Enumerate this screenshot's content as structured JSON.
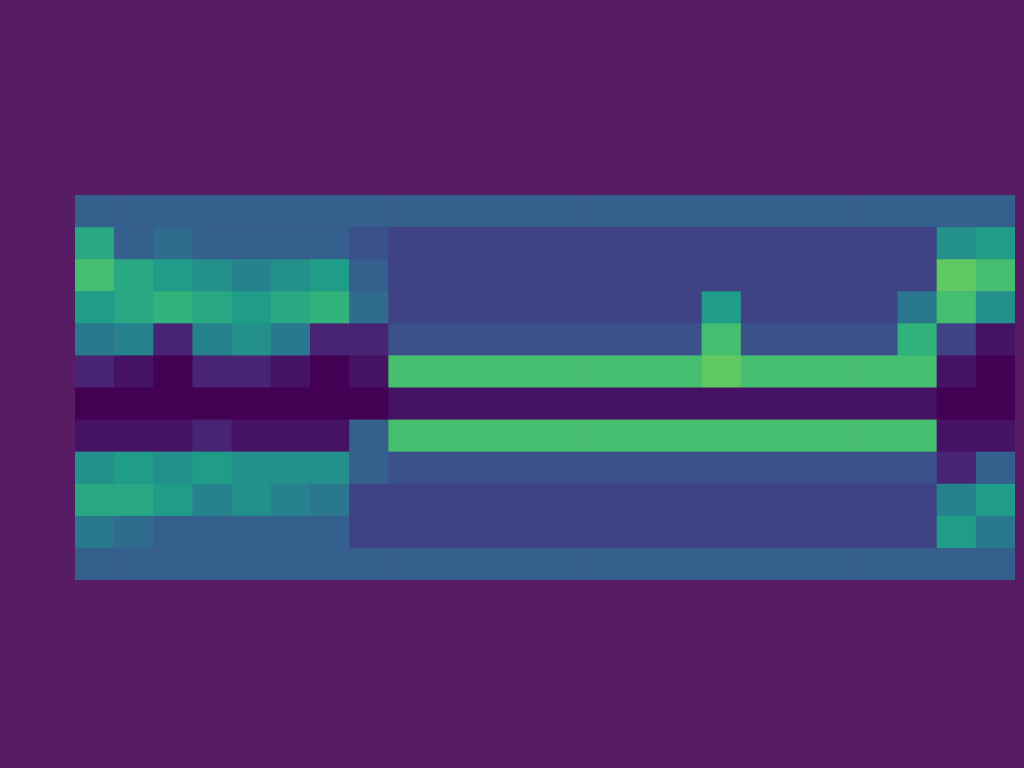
{
  "chart_data": {
    "type": "heatmap",
    "x": [
      0.5,
      1.5,
      2.5,
      3.5,
      4.5,
      5.5,
      6.5,
      7.5,
      8.5,
      9.5,
      10.5,
      11.5,
      12.5,
      13.5,
      14.5,
      15.5,
      16.5,
      17.5,
      18.5,
      19.5,
      20.5,
      21.5,
      22.5,
      23.5
    ],
    "y": [
      11.5,
      10.5,
      9.5,
      8.5,
      7.5,
      6.5,
      5.5,
      4.5,
      3.5,
      2.5,
      1.5,
      0.5
    ],
    "xlim": [
      0,
      24
    ],
    "ylim": [
      0,
      12
    ],
    "zlim": [
      0,
      1
    ],
    "tick_labels": false,
    "grid": false,
    "z": [
      [
        0.3,
        0.3,
        0.3,
        0.3,
        0.3,
        0.3,
        0.3,
        0.3,
        0.3,
        0.3,
        0.3,
        0.3,
        0.3,
        0.3,
        0.3,
        0.3,
        0.3,
        0.3,
        0.3,
        0.3,
        0.3,
        0.3,
        0.3,
        0.3
      ],
      [
        0.6,
        0.3,
        0.35,
        0.3,
        0.3,
        0.3,
        0.3,
        0.25,
        0.2,
        0.2,
        0.2,
        0.2,
        0.2,
        0.2,
        0.2,
        0.2,
        0.2,
        0.2,
        0.2,
        0.2,
        0.2,
        0.2,
        0.5,
        0.55
      ],
      [
        0.7,
        0.6,
        0.55,
        0.5,
        0.45,
        0.5,
        0.55,
        0.3,
        0.2,
        0.2,
        0.2,
        0.2,
        0.2,
        0.2,
        0.2,
        0.2,
        0.2,
        0.2,
        0.2,
        0.2,
        0.2,
        0.2,
        0.75,
        0.7
      ],
      [
        0.55,
        0.6,
        0.65,
        0.6,
        0.55,
        0.6,
        0.65,
        0.35,
        0.2,
        0.2,
        0.2,
        0.2,
        0.2,
        0.2,
        0.2,
        0.2,
        0.55,
        0.2,
        0.2,
        0.2,
        0.2,
        0.4,
        0.7,
        0.5
      ],
      [
        0.4,
        0.45,
        0.1,
        0.45,
        0.5,
        0.4,
        0.1,
        0.1,
        0.25,
        0.25,
        0.25,
        0.25,
        0.25,
        0.25,
        0.25,
        0.25,
        0.7,
        0.25,
        0.25,
        0.25,
        0.25,
        0.65,
        0.2,
        0.05
      ],
      [
        0.1,
        0.05,
        0,
        0.1,
        0.1,
        0.05,
        0,
        0.05,
        0.7,
        0.7,
        0.7,
        0.7,
        0.7,
        0.7,
        0.7,
        0.7,
        0.75,
        0.7,
        0.7,
        0.7,
        0.7,
        0.7,
        0.05,
        0
      ],
      [
        0,
        0,
        0,
        0,
        0,
        0,
        0,
        0,
        0.05,
        0.05,
        0.05,
        0.05,
        0.05,
        0.05,
        0.05,
        0.05,
        0.05,
        0.05,
        0.05,
        0.05,
        0.05,
        0.05,
        0,
        0
      ],
      [
        0.05,
        0.05,
        0.05,
        0.1,
        0.05,
        0.05,
        0.05,
        0.3,
        0.7,
        0.7,
        0.7,
        0.7,
        0.7,
        0.7,
        0.7,
        0.7,
        0.7,
        0.7,
        0.7,
        0.7,
        0.7,
        0.7,
        0.05,
        0.05
      ],
      [
        0.5,
        0.55,
        0.5,
        0.55,
        0.5,
        0.5,
        0.5,
        0.3,
        0.25,
        0.25,
        0.25,
        0.25,
        0.25,
        0.25,
        0.25,
        0.25,
        0.25,
        0.25,
        0.25,
        0.25,
        0.25,
        0.25,
        0.1,
        0.3
      ],
      [
        0.6,
        0.6,
        0.55,
        0.45,
        0.5,
        0.45,
        0.4,
        0.2,
        0.2,
        0.2,
        0.2,
        0.2,
        0.2,
        0.2,
        0.2,
        0.2,
        0.2,
        0.2,
        0.2,
        0.2,
        0.2,
        0.2,
        0.45,
        0.55
      ],
      [
        0.4,
        0.35,
        0.3,
        0.3,
        0.3,
        0.3,
        0.3,
        0.2,
        0.2,
        0.2,
        0.2,
        0.2,
        0.2,
        0.2,
        0.2,
        0.2,
        0.2,
        0.2,
        0.2,
        0.2,
        0.2,
        0.2,
        0.55,
        0.4
      ],
      [
        0.3,
        0.3,
        0.3,
        0.3,
        0.3,
        0.3,
        0.3,
        0.3,
        0.3,
        0.3,
        0.3,
        0.3,
        0.3,
        0.3,
        0.3,
        0.3,
        0.3,
        0.3,
        0.3,
        0.3,
        0.3,
        0.3,
        0.3,
        0.3
      ]
    ]
  }
}
